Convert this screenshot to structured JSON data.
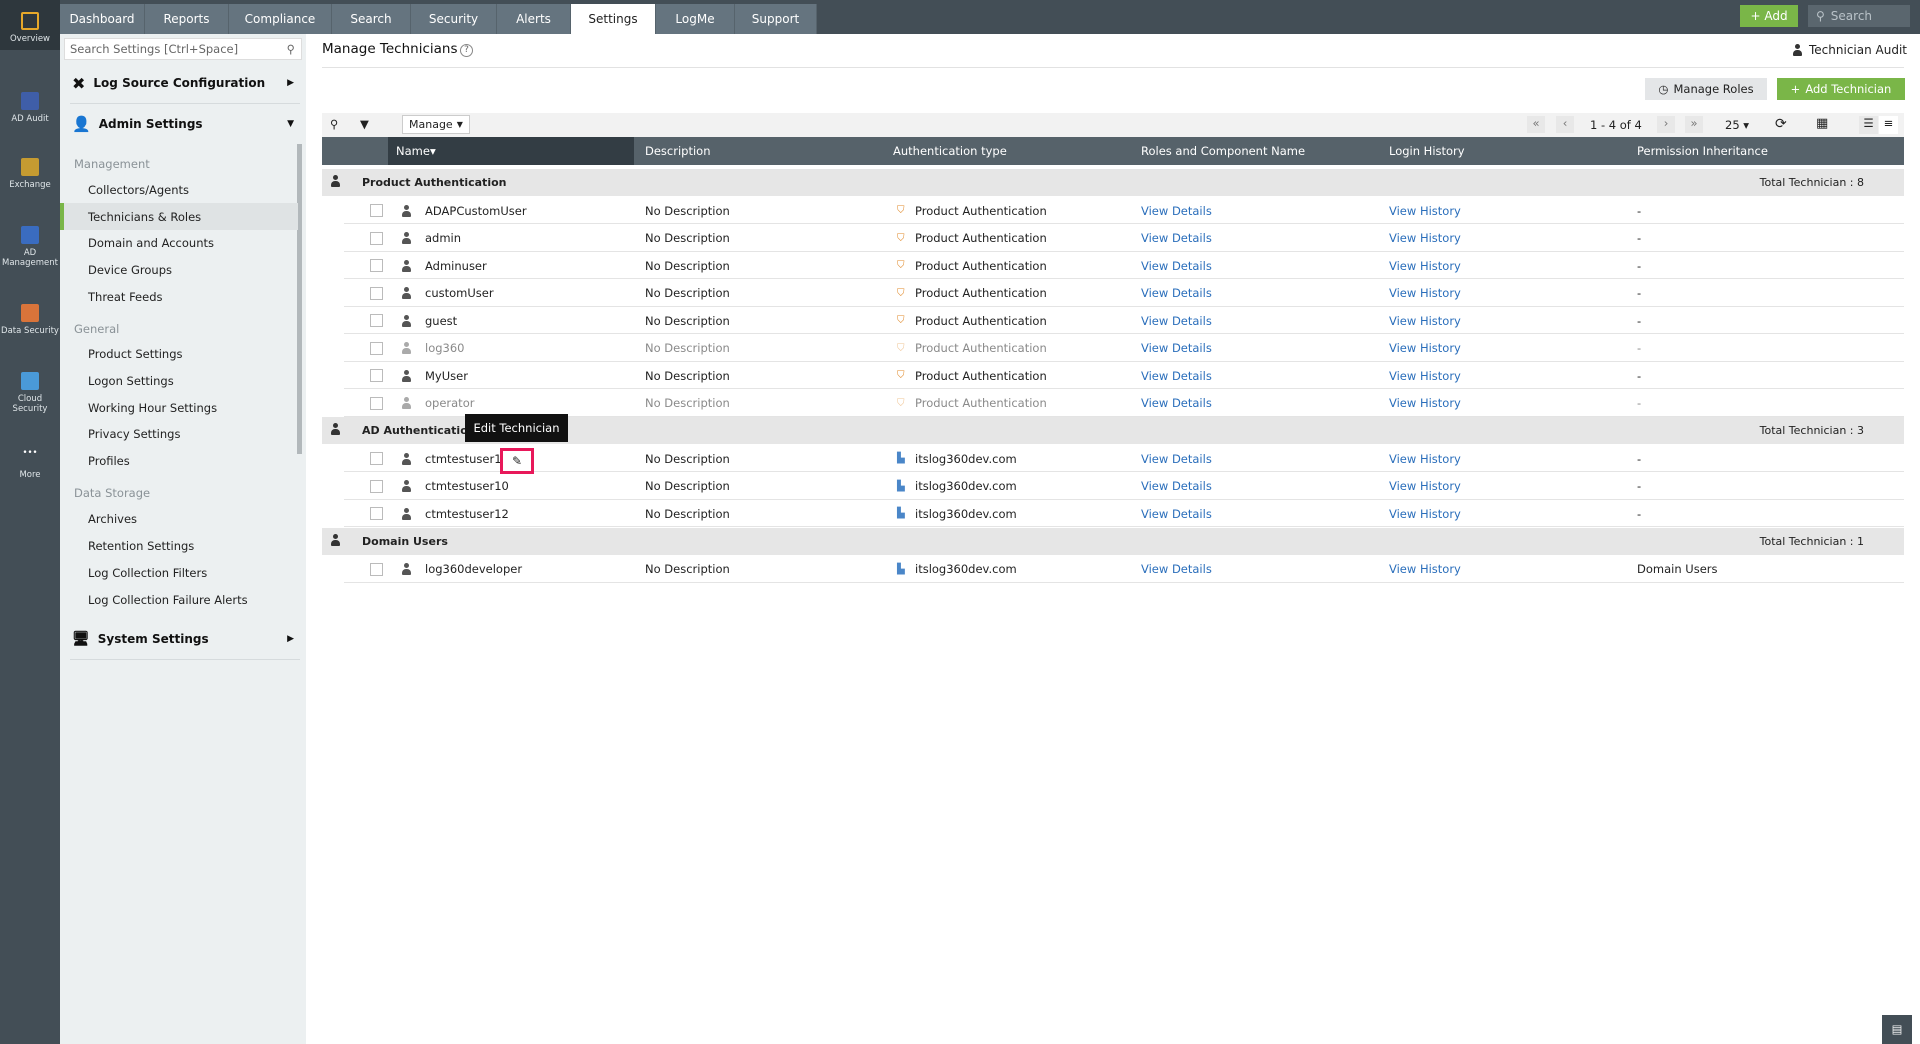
{
  "topnav": {
    "tabs": [
      "Dashboard",
      "Reports",
      "Compliance",
      "Search",
      "Security",
      "Alerts",
      "Settings",
      "LogMe",
      "Support"
    ],
    "active": "Settings",
    "add_label": "Add",
    "search_placeholder": "Search"
  },
  "rail": [
    {
      "label": "Overview",
      "icon": "overview-icon",
      "color": "#e6a82a"
    },
    {
      "label": "AD Audit",
      "icon": "ad-audit-icon",
      "color": "#3f5ea8"
    },
    {
      "label": "Exchange",
      "icon": "exchange-icon",
      "color": "#c59b31"
    },
    {
      "label": "AD Management",
      "icon": "ad-management-icon",
      "color": "#3a6cc0"
    },
    {
      "label": "Data Security",
      "icon": "data-security-icon",
      "color": "#d9743a"
    },
    {
      "label": "Cloud Security",
      "icon": "cloud-security-icon",
      "color": "#4a9ad8"
    },
    {
      "label": "More",
      "icon": "more-icon",
      "color": ""
    }
  ],
  "sidebar": {
    "search_placeholder": "Search Settings [Ctrl+Space]",
    "log_source": "Log Source Configuration",
    "admin_settings": "Admin Settings",
    "groups": [
      {
        "title": "Management",
        "items": [
          "Collectors/Agents",
          "Technicians & Roles",
          "Domain and Accounts",
          "Device Groups",
          "Threat Feeds"
        ]
      },
      {
        "title": "General",
        "items": [
          "Product Settings",
          "Logon Settings",
          "Working Hour Settings",
          "Privacy Settings",
          "Profiles"
        ]
      },
      {
        "title": "Data Storage",
        "items": [
          "Archives",
          "Retention Settings",
          "Log Collection Filters",
          "Log Collection Failure Alerts"
        ]
      }
    ],
    "active_item": "Technicians & Roles",
    "system_settings": "System Settings"
  },
  "page": {
    "title": "Manage Technicians",
    "technician_audit": "Technician Audit",
    "manage_roles": "Manage Roles",
    "add_technician": "Add Technician",
    "accent": "#7ab648"
  },
  "toolbar": {
    "manage": "Manage",
    "pagination": "1 - 4 of 4",
    "page_size": "25"
  },
  "table": {
    "columns": [
      "Name",
      "Description",
      "Authentication type",
      "Roles and Component Name",
      "Login History",
      "Permission Inheritance"
    ],
    "groups": [
      {
        "name": "Product Authentication",
        "total": "Total Technician : 8",
        "rows": [
          {
            "name": "ADAPCustomUser",
            "desc": "No Description",
            "auth": "Product Authentication",
            "roles": "View Details",
            "login": "View History",
            "perm": "-",
            "disabled": false
          },
          {
            "name": "admin",
            "desc": "No Description",
            "auth": "Product Authentication",
            "roles": "View Details",
            "login": "View History",
            "perm": "-",
            "disabled": false
          },
          {
            "name": "Adminuser",
            "desc": "No Description",
            "auth": "Product Authentication",
            "roles": "View Details",
            "login": "View History",
            "perm": "-",
            "disabled": false
          },
          {
            "name": "customUser",
            "desc": "No Description",
            "auth": "Product Authentication",
            "roles": "View Details",
            "login": "View History",
            "perm": "-",
            "disabled": false
          },
          {
            "name": "guest",
            "desc": "No Description",
            "auth": "Product Authentication",
            "roles": "View Details",
            "login": "View History",
            "perm": "-",
            "disabled": false
          },
          {
            "name": "log360",
            "desc": "No Description",
            "auth": "Product Authentication",
            "roles": "View Details",
            "login": "View History",
            "perm": "-",
            "disabled": true
          },
          {
            "name": "MyUser",
            "desc": "No Description",
            "auth": "Product Authentication",
            "roles": "View Details",
            "login": "View History",
            "perm": "-",
            "disabled": false
          },
          {
            "name": "operator",
            "desc": "No Description",
            "auth": "Product Authentication",
            "roles": "View Details",
            "login": "View History",
            "perm": "-",
            "disabled": true
          }
        ]
      },
      {
        "name": "AD Authentication",
        "total": "Total Technician : 3",
        "rows": [
          {
            "name": "ctmtestuser1",
            "desc": "No Description",
            "auth": "itslog360dev.com",
            "roles": "View Details",
            "login": "View History",
            "perm": "-",
            "disabled": false
          },
          {
            "name": "ctmtestuser10",
            "desc": "No Description",
            "auth": "itslog360dev.com",
            "roles": "View Details",
            "login": "View History",
            "perm": "-",
            "disabled": false
          },
          {
            "name": "ctmtestuser12",
            "desc": "No Description",
            "auth": "itslog360dev.com",
            "roles": "View Details",
            "login": "View History",
            "perm": "-",
            "disabled": false
          }
        ]
      },
      {
        "name": "Domain Users",
        "total": "Total Technician : 1",
        "rows": [
          {
            "name": "log360developer",
            "desc": "No Description",
            "auth": "itslog360dev.com",
            "roles": "View Details",
            "login": "View History",
            "perm": "Domain Users",
            "disabled": false
          }
        ]
      }
    ]
  },
  "tooltip": "Edit Technician"
}
